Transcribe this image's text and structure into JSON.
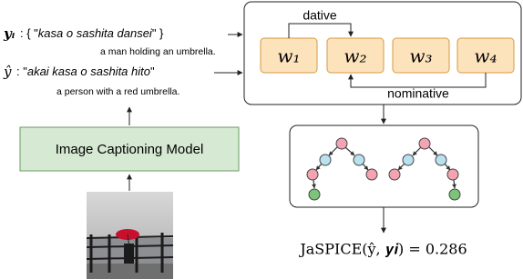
{
  "captions": [
    {
      "symbol": "𝒚ᵢ",
      "parts": [
        ": { \"",
        "kasa o sashita dansei",
        "\" }"
      ],
      "translation": "a man holding an umbrella."
    },
    {
      "symbol": "ŷ",
      "parts": [
        " : \"",
        "akai kasa o sashita hito",
        "\""
      ],
      "translation": "a person with a red umbrella."
    }
  ],
  "model": "Image Captioning Model",
  "words": [
    "w₁",
    "w₂",
    "w₃",
    "w₄"
  ],
  "edges": [
    {
      "label": "dative"
    },
    {
      "label": "nominative"
    }
  ],
  "formula": "JaSPICE(ŷ, 𝒚𝒊) = 0.286"
}
